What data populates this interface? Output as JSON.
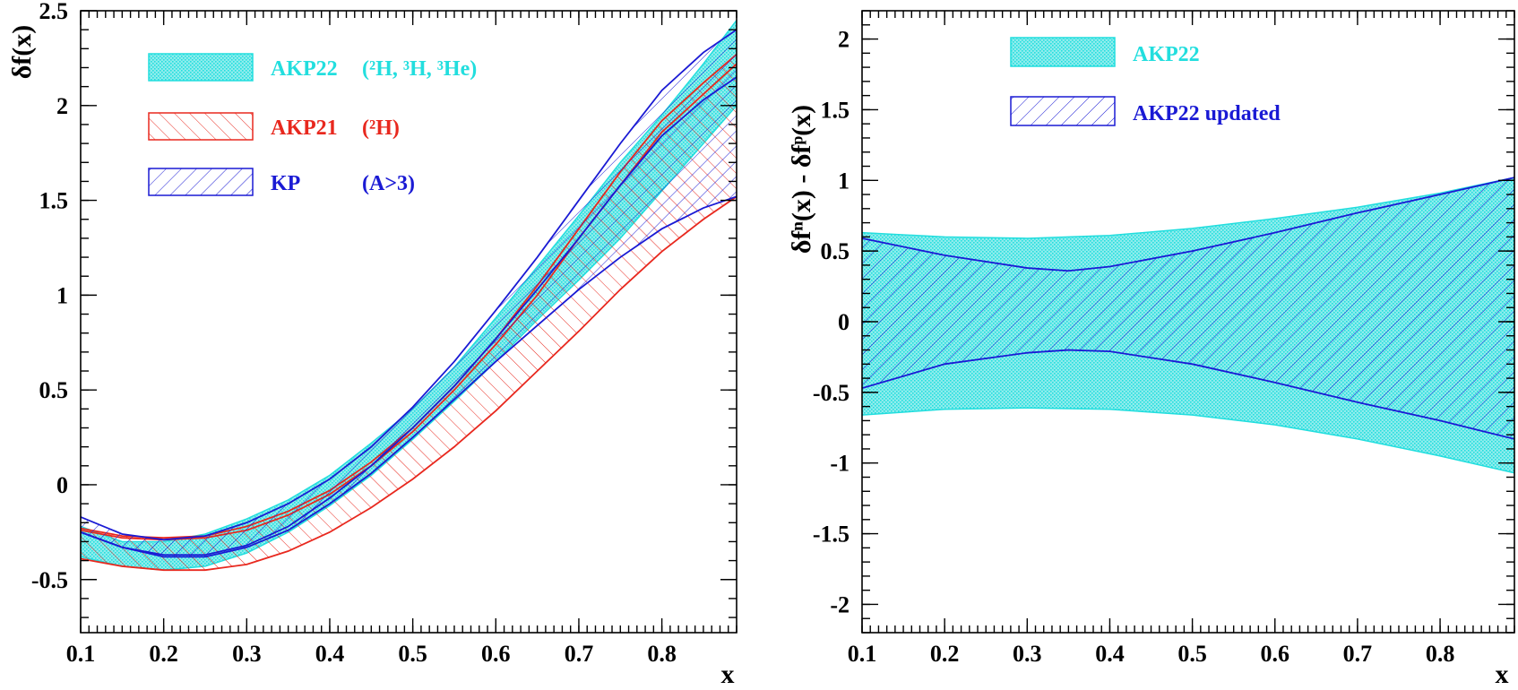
{
  "colors": {
    "cyan": "#22dede",
    "cyan_fill": "#8fecec",
    "red": "#e8281e",
    "blue": "#1a1ad4",
    "axis": "#000000"
  },
  "chart_data": [
    {
      "type": "area",
      "xlabel": "x",
      "ylabel": "δf(x)",
      "xlim": [
        0.1,
        0.89
      ],
      "ylim": [
        -0.78,
        2.5
      ],
      "xticks": [
        0.1,
        0.2,
        0.3,
        0.4,
        0.5,
        0.6,
        0.7,
        0.8
      ],
      "xtick_labels": [
        "0.1",
        "0.2",
        "0.3",
        "0.4",
        "0.5",
        "0.6",
        "0.7",
        "0.8"
      ],
      "yticks": [
        -0.5,
        0,
        0.5,
        1,
        1.5,
        2,
        2.5
      ],
      "ytick_labels": [
        "-0.5",
        "0",
        "0.5",
        "1",
        "1.5",
        "2",
        "2.5"
      ],
      "legend": [
        {
          "label": "AKP22",
          "detail": "(²H, ³H, ³He)",
          "style": "dotted-fill",
          "color": "#22dede"
        },
        {
          "label": "AKP21",
          "detail": "(²H)",
          "style": "hatch-forward",
          "color": "#e8281e"
        },
        {
          "label": "KP",
          "detail": "(A>3)",
          "style": "hatch-backward",
          "color": "#1a1ad4"
        }
      ],
      "series": [
        {
          "name": "AKP22",
          "style": "dotted-fill",
          "color": "#22dede",
          "x": [
            0.1,
            0.15,
            0.2,
            0.25,
            0.3,
            0.35,
            0.4,
            0.45,
            0.5,
            0.55,
            0.6,
            0.65,
            0.7,
            0.75,
            0.8,
            0.85,
            0.89
          ],
          "upper": [
            -0.22,
            -0.3,
            -0.3,
            -0.26,
            -0.18,
            -0.08,
            0.05,
            0.22,
            0.4,
            0.62,
            0.88,
            1.15,
            1.42,
            1.7,
            1.95,
            2.22,
            2.45
          ],
          "lower": [
            -0.38,
            -0.43,
            -0.45,
            -0.43,
            -0.36,
            -0.25,
            -0.11,
            0.05,
            0.24,
            0.44,
            0.65,
            0.87,
            1.08,
            1.3,
            1.55,
            1.8,
            2.0
          ]
        },
        {
          "name": "AKP21",
          "style": "hatch-forward",
          "color": "#e8281e",
          "x": [
            0.1,
            0.15,
            0.2,
            0.25,
            0.3,
            0.35,
            0.4,
            0.45,
            0.5,
            0.55,
            0.6,
            0.65,
            0.7,
            0.75,
            0.8,
            0.85,
            0.89
          ],
          "upper": [
            -0.23,
            -0.27,
            -0.28,
            -0.27,
            -0.22,
            -0.14,
            -0.03,
            0.12,
            0.3,
            0.52,
            0.77,
            1.05,
            1.35,
            1.65,
            1.92,
            2.12,
            2.27
          ],
          "center": [
            -0.24,
            -0.28,
            -0.29,
            -0.28,
            -0.24,
            -0.16,
            -0.05,
            0.1,
            0.28,
            0.5,
            0.74,
            1.0,
            1.3,
            1.58,
            1.86,
            2.06,
            2.22
          ],
          "lower": [
            -0.39,
            -0.43,
            -0.45,
            -0.45,
            -0.42,
            -0.35,
            -0.25,
            -0.12,
            0.03,
            0.2,
            0.39,
            0.6,
            0.81,
            1.03,
            1.23,
            1.4,
            1.52
          ]
        },
        {
          "name": "KP",
          "style": "hatch-backward",
          "color": "#1a1ad4",
          "x": [
            0.1,
            0.15,
            0.2,
            0.25,
            0.3,
            0.35,
            0.4,
            0.45,
            0.5,
            0.55,
            0.6,
            0.65,
            0.7,
            0.75,
            0.8,
            0.85,
            0.89
          ],
          "upper": [
            -0.17,
            -0.26,
            -0.29,
            -0.27,
            -0.2,
            -0.1,
            0.03,
            0.2,
            0.41,
            0.65,
            0.92,
            1.2,
            1.5,
            1.8,
            2.08,
            2.28,
            2.4
          ],
          "center": [
            -0.25,
            -0.33,
            -0.37,
            -0.37,
            -0.32,
            -0.22,
            -0.07,
            0.1,
            0.3,
            0.52,
            0.77,
            1.03,
            1.3,
            1.58,
            1.84,
            2.03,
            2.15
          ],
          "lower": [
            -0.25,
            -0.33,
            -0.38,
            -0.38,
            -0.33,
            -0.24,
            -0.1,
            0.06,
            0.25,
            0.45,
            0.65,
            0.84,
            1.03,
            1.2,
            1.35,
            1.46,
            1.52
          ]
        }
      ]
    },
    {
      "type": "area",
      "xlabel": "x",
      "ylabel": "δfⁿ(x) - δfᵖ(x)",
      "xlim": [
        0.1,
        0.89
      ],
      "ylim": [
        -2.2,
        2.2
      ],
      "xticks": [
        0.1,
        0.2,
        0.3,
        0.4,
        0.5,
        0.6,
        0.7,
        0.8
      ],
      "xtick_labels": [
        "0.1",
        "0.2",
        "0.3",
        "0.4",
        "0.5",
        "0.6",
        "0.7",
        "0.8"
      ],
      "yticks": [
        -2,
        -1.5,
        -1,
        -0.5,
        0,
        0.5,
        1,
        1.5,
        2
      ],
      "ytick_labels": [
        "-2",
        "-1.5",
        "-1",
        "-0.5",
        "0",
        "0.5",
        "1",
        "1.5",
        "2"
      ],
      "legend": [
        {
          "label": "AKP22",
          "style": "dotted-fill",
          "color": "#22dede"
        },
        {
          "label": "AKP22 updated",
          "style": "hatch-backward",
          "color": "#1a1ad4"
        }
      ],
      "series": [
        {
          "name": "AKP22",
          "style": "dotted-fill",
          "color": "#22dede",
          "x": [
            0.1,
            0.2,
            0.3,
            0.4,
            0.5,
            0.6,
            0.7,
            0.8,
            0.89
          ],
          "upper": [
            0.63,
            0.6,
            0.59,
            0.61,
            0.66,
            0.73,
            0.81,
            0.91,
            1.02
          ],
          "lower": [
            -0.66,
            -0.62,
            -0.61,
            -0.62,
            -0.66,
            -0.73,
            -0.83,
            -0.95,
            -1.07
          ]
        },
        {
          "name": "AKP22 updated",
          "style": "hatch-backward",
          "color": "#1a1ad4",
          "x": [
            0.1,
            0.2,
            0.3,
            0.35,
            0.4,
            0.5,
            0.6,
            0.7,
            0.8,
            0.89
          ],
          "upper": [
            0.59,
            0.47,
            0.38,
            0.36,
            0.39,
            0.5,
            0.63,
            0.77,
            0.9,
            1.02
          ],
          "lower": [
            -0.47,
            -0.3,
            -0.22,
            -0.2,
            -0.21,
            -0.3,
            -0.43,
            -0.57,
            -0.7,
            -0.83
          ]
        }
      ]
    }
  ]
}
